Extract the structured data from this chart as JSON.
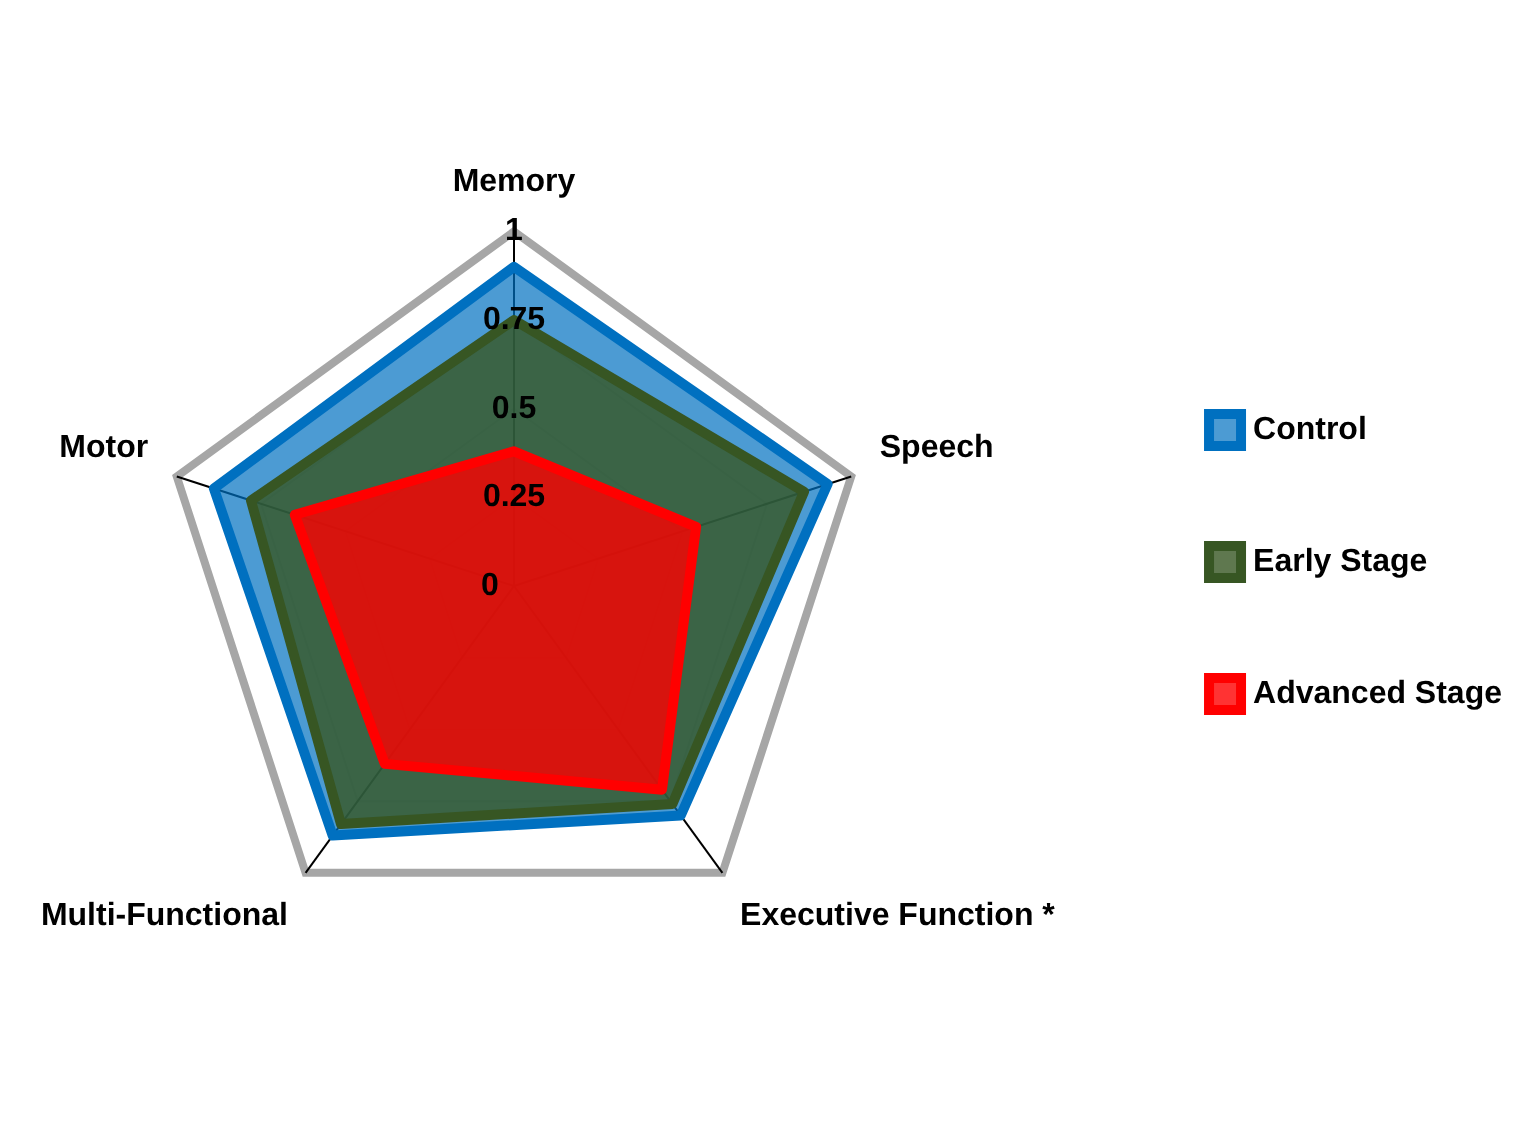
{
  "chart_data": {
    "type": "radar",
    "categories": [
      "Memory",
      "Speech",
      "Executive Function *",
      "Multi-Functional",
      "Motor"
    ],
    "series": [
      {
        "name": "Control",
        "color": "#0070c0",
        "values": [
          0.9,
          0.93,
          0.8,
          0.87,
          0.89
        ]
      },
      {
        "name": "Early Stage",
        "color": "#375623",
        "values": [
          0.75,
          0.86,
          0.76,
          0.83,
          0.78
        ]
      },
      {
        "name": "Advanced Stage",
        "color": "#ff0000",
        "values": [
          0.38,
          0.54,
          0.71,
          0.62,
          0.65
        ]
      }
    ],
    "ylim": [
      0,
      1
    ],
    "yticks": [
      0,
      0.25,
      0.5,
      0.75,
      1
    ],
    "grid": true,
    "legend": "right"
  }
}
